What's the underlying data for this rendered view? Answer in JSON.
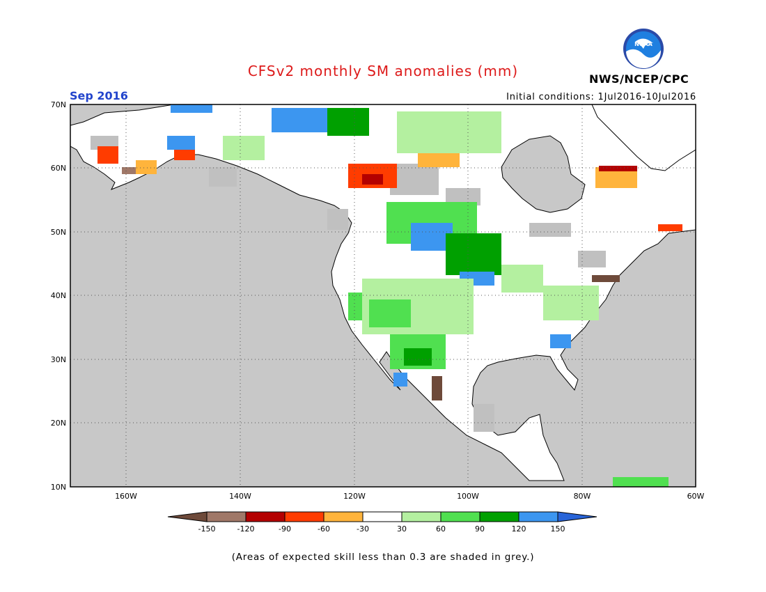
{
  "title": "CFSv2 monthly SM anomalies (mm)",
  "organization": "NWS/NCEP/CPC",
  "logo_text": "NOAA",
  "valid_month": "Sep 2016",
  "initial_conditions": "Initial conditions: 1Jul2016-10Jul2016",
  "footnote": "(Areas of expected skill less than 0.3 are shaded in grey.)",
  "map": {
    "lon_range": [
      -172,
      -60
    ],
    "lat_range": [
      10,
      70
    ],
    "lat_labels": [
      "70N",
      "60N",
      "50N",
      "40N",
      "30N",
      "20N",
      "10N"
    ],
    "lon_labels": [
      "160W",
      "140W",
      "120W",
      "100W",
      "80W",
      "60W"
    ],
    "grid": "dotted",
    "colors": {
      "ocean": "#c8c8c8",
      "land": "#ffffff",
      "skill_grey": "#c0c0c0"
    }
  },
  "legend": {
    "labels": [
      "-150",
      "-120",
      "-90",
      "-60",
      "-30",
      "30",
      "60",
      "90",
      "120",
      "150"
    ],
    "colors": [
      "#6e4a3a",
      "#a07868",
      "#b40000",
      "#ff3c00",
      "#ffb43c",
      "#ffffff",
      "#b4f0a0",
      "#50e050",
      "#00a000",
      "#3c96f0",
      "#2864d8"
    ]
  },
  "colors": {
    "title": "#dd1a1a",
    "month": "#2244cc",
    "text": "#000000"
  }
}
